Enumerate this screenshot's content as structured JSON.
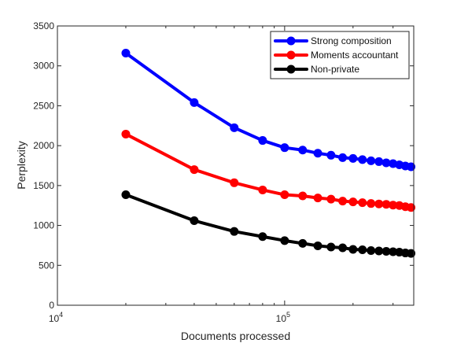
{
  "chart_data": {
    "type": "line",
    "title": "",
    "xlabel": "Documents processed",
    "ylabel": "Perplexity",
    "x_scale": "log",
    "xlim": [
      10000,
      370000
    ],
    "ylim": [
      0,
      3500
    ],
    "grid": false,
    "legend_position": "top-right",
    "x_ticks": [
      {
        "base": "10",
        "exp": "4"
      },
      {
        "base": "10",
        "exp": "5"
      }
    ],
    "y_ticks": [
      "0",
      "500",
      "1000",
      "1500",
      "2000",
      "2500",
      "3000",
      "3500"
    ],
    "y_tick_values": [
      0,
      500,
      1000,
      1500,
      2000,
      2500,
      3000,
      3500
    ],
    "x": [
      20000,
      40000,
      60000,
      80000,
      100000,
      120000,
      140000,
      160000,
      180000,
      200000,
      220000,
      240000,
      260000,
      280000,
      300000,
      320000,
      340000,
      360000
    ],
    "series": [
      {
        "name": "Strong composition",
        "color": "#0000ff",
        "values": [
          3160,
          2540,
          2225,
          2065,
          1975,
          1945,
          1905,
          1880,
          1850,
          1840,
          1825,
          1810,
          1800,
          1785,
          1775,
          1760,
          1745,
          1735
        ]
      },
      {
        "name": "Moments accountant",
        "color": "#ff0000",
        "values": [
          2145,
          1700,
          1535,
          1445,
          1385,
          1370,
          1345,
          1330,
          1305,
          1295,
          1285,
          1275,
          1270,
          1265,
          1255,
          1250,
          1235,
          1225
        ]
      },
      {
        "name": "Non-private",
        "color": "#000000",
        "values": [
          1385,
          1060,
          925,
          860,
          810,
          775,
          745,
          730,
          720,
          700,
          695,
          685,
          680,
          675,
          670,
          665,
          655,
          650
        ]
      }
    ]
  }
}
